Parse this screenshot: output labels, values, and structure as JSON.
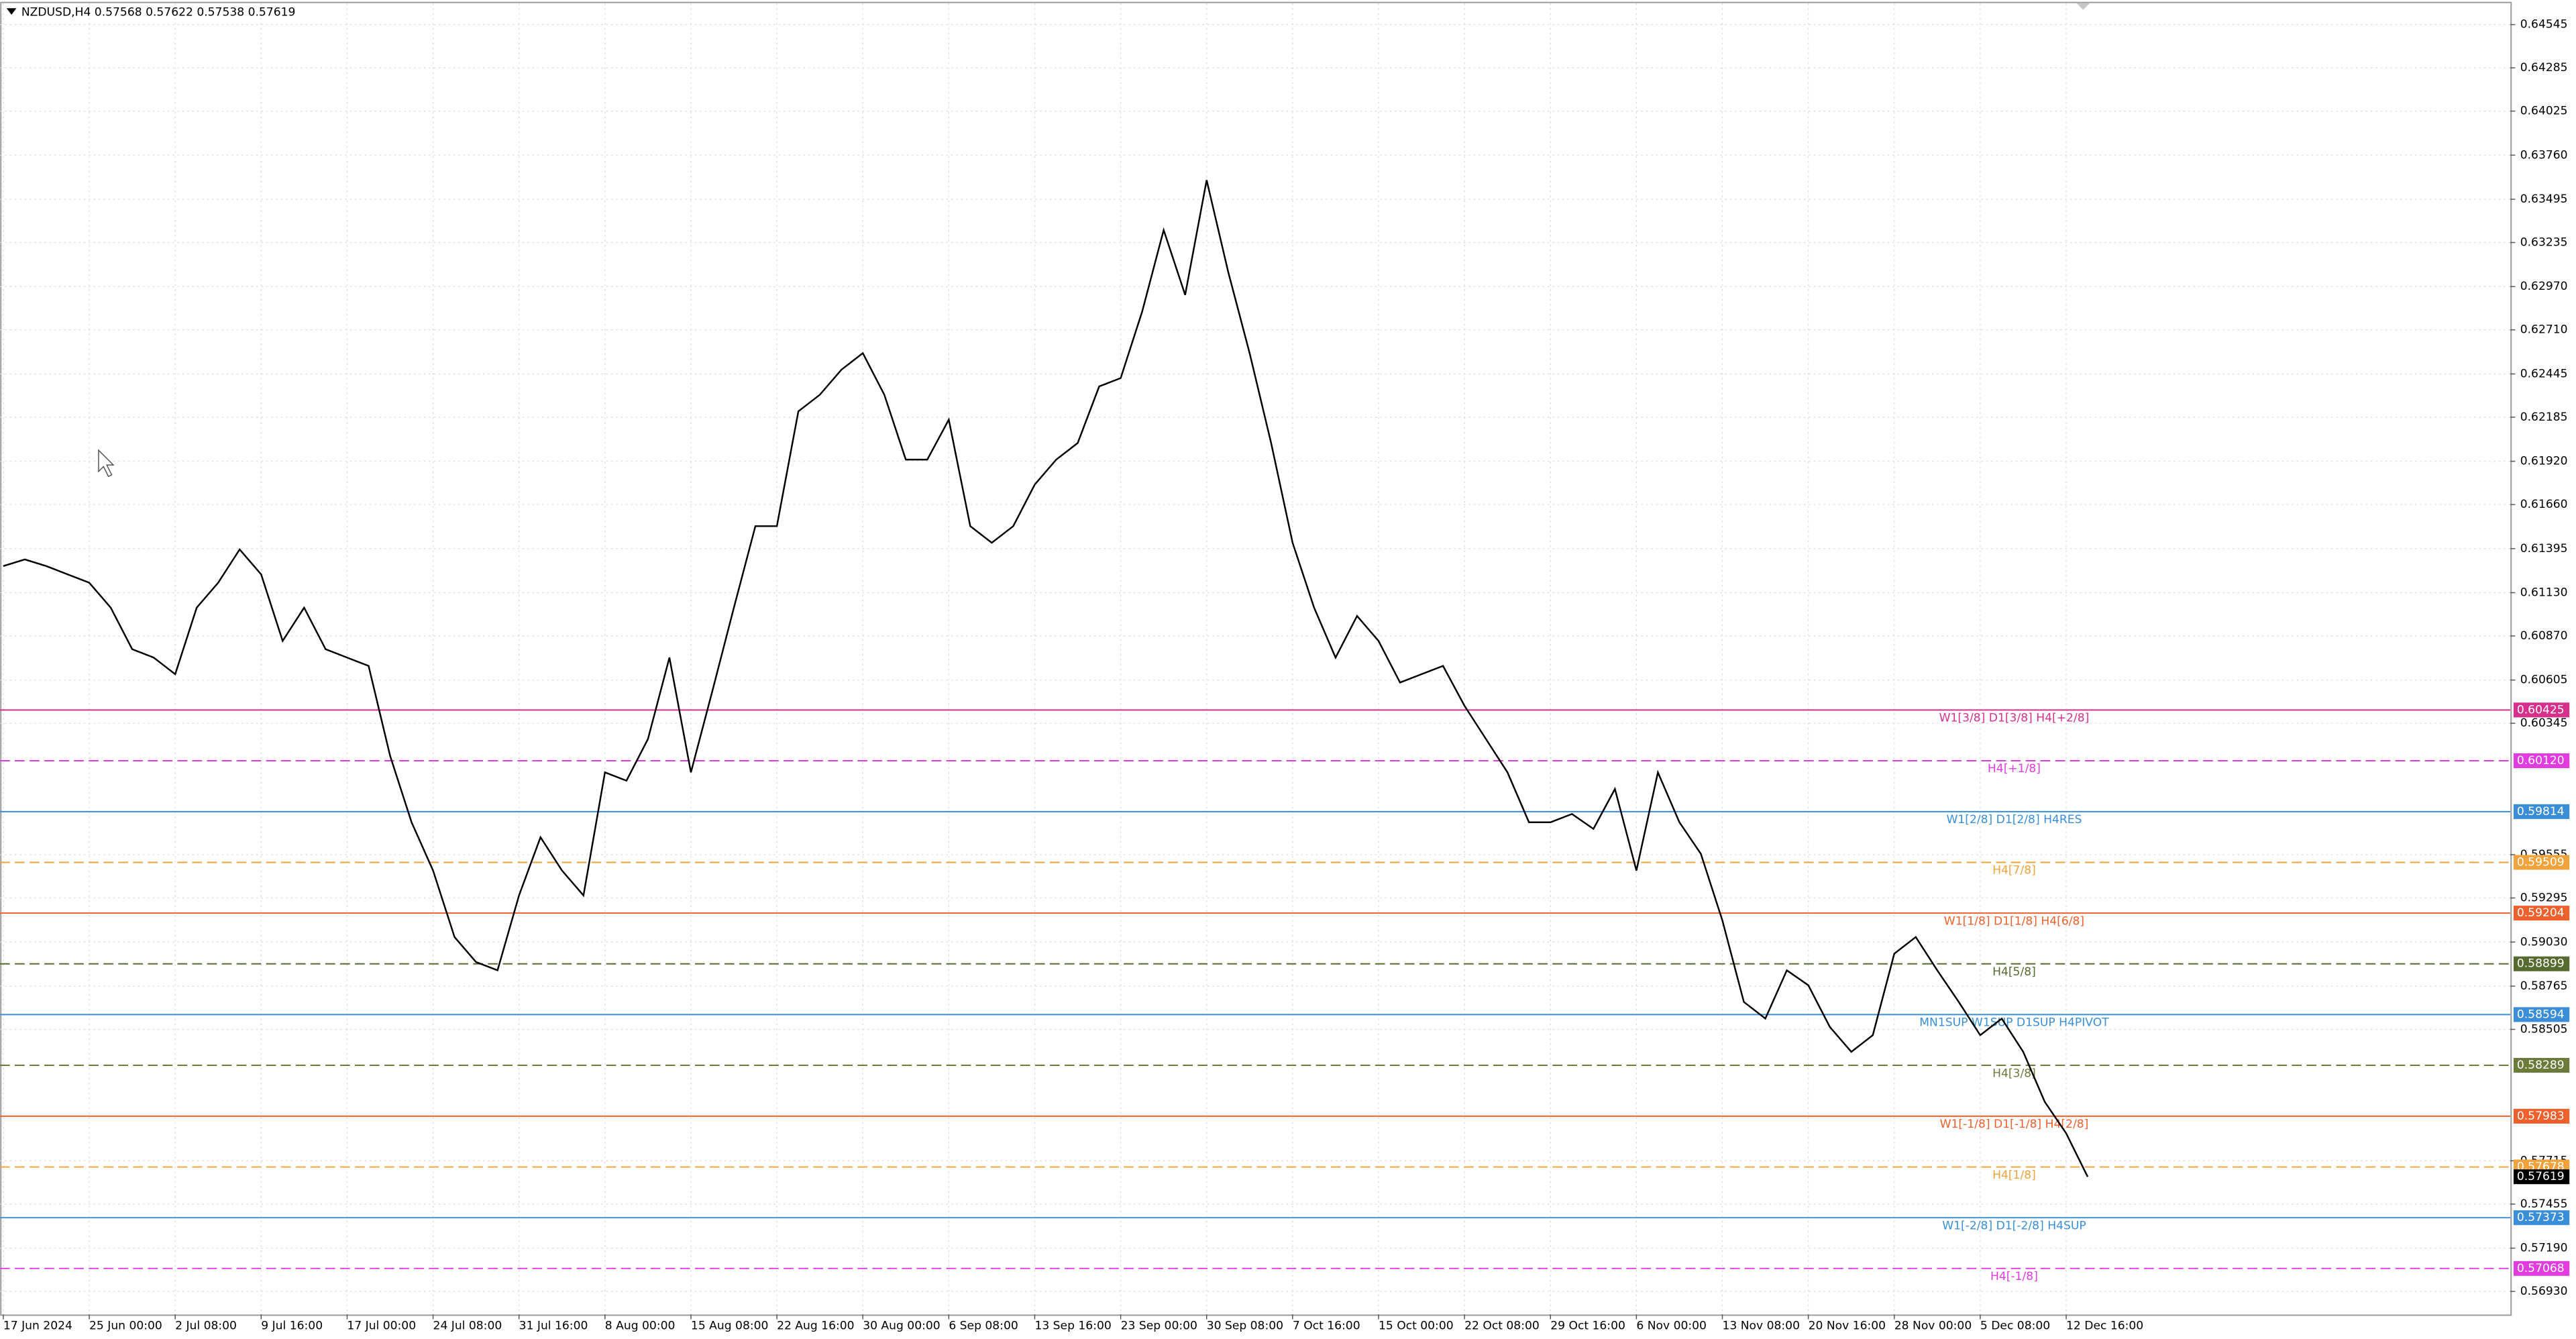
{
  "chart_data": {
    "type": "line",
    "title": "NZDUSD,H4  0.57568 0.57622 0.57538 0.57619",
    "color": "#000000",
    "grid": true,
    "categories": [
      "17 Jun 2024",
      null,
      null,
      null,
      "25 Jun 00:00",
      null,
      null,
      null,
      "2 Jul 08:00",
      null,
      null,
      null,
      "9 Jul 16:00",
      null,
      null,
      null,
      "17 Jul 00:00",
      null,
      null,
      null,
      "24 Jul 08:00",
      null,
      null,
      null,
      "31 Jul 16:00",
      null,
      null,
      null,
      "8 Aug 00:00",
      null,
      null,
      null,
      "15 Aug 08:00",
      null,
      null,
      null,
      "22 Aug 16:00",
      null,
      null,
      null,
      "30 Aug 00:00",
      null,
      null,
      null,
      "6 Sep 08:00",
      null,
      null,
      null,
      "13 Sep 16:00",
      null,
      null,
      null,
      "23 Sep 00:00",
      null,
      null,
      null,
      "30 Sep 08:00",
      null,
      null,
      null,
      "7 Oct 16:00",
      null,
      null,
      null,
      "15 Oct 00:00",
      null,
      null,
      null,
      "22 Oct 08:00",
      null,
      null,
      null,
      "29 Oct 16:00",
      null,
      null,
      null,
      "6 Nov 00:00",
      null,
      null,
      null,
      "13 Nov 08:00",
      null,
      null,
      null,
      "20 Nov 16:00",
      null,
      null,
      null,
      "28 Nov 00:00",
      null,
      null,
      null,
      "5 Dec 08:00",
      null,
      null,
      null,
      "12 Dec 16:00",
      null
    ],
    "values": [
      0.6129,
      0.6133,
      0.6129,
      0.6124,
      0.6119,
      0.6104,
      0.6079,
      0.6074,
      0.6064,
      0.6104,
      0.6119,
      0.6139,
      0.6124,
      0.6084,
      0.6104,
      0.6079,
      0.6074,
      0.6069,
      0.6015,
      0.5975,
      0.5946,
      0.5906,
      0.5891,
      0.5886,
      0.5931,
      0.5966,
      0.5946,
      0.5931,
      0.6005,
      0.6,
      0.6025,
      0.6074,
      0.6005,
      0.6054,
      0.6104,
      0.6153,
      0.6153,
      0.6222,
      0.6232,
      0.6247,
      0.6257,
      0.6232,
      0.6193,
      0.6193,
      0.6217,
      0.6153,
      0.6143,
      0.6153,
      0.6178,
      0.6193,
      0.6203,
      0.6237,
      0.6242,
      0.6282,
      0.6331,
      0.6292,
      0.6361,
      0.6306,
      0.6257,
      0.6203,
      0.6143,
      0.6104,
      0.6074,
      0.6099,
      0.6084,
      0.6059,
      0.6064,
      0.6069,
      0.6045,
      0.6025,
      0.6005,
      0.5975,
      0.5975,
      0.598,
      0.5971,
      0.5995,
      0.5946,
      0.6005,
      0.5975,
      0.5956,
      0.5916,
      0.5867,
      0.5857,
      0.5886,
      0.5877,
      0.5852,
      0.5837,
      0.5847,
      0.5896,
      0.5906,
      0.5886,
      0.5867,
      0.5847,
      0.5857,
      0.5837,
      0.5807,
      0.5788,
      0.57619
    ],
    "ylim": [
      0.56792,
      0.64673
    ],
    "yticks": [
      0.64545,
      0.64285,
      0.64025,
      {
        "value": 0.6376,
        "label": "0.63760"
      },
      0.63495,
      0.63235,
      {
        "value": 0.6297,
        "label": "0.62970"
      },
      {
        "value": 0.6271,
        "label": "0.62710"
      },
      0.62445,
      0.62185,
      {
        "value": 0.6192,
        "label": "0.61920"
      },
      {
        "value": 0.6166,
        "label": "0.61660"
      },
      0.61395,
      {
        "value": 0.6113,
        "label": "0.61130"
      },
      {
        "value": 0.6087,
        "label": "0.60870"
      },
      0.60605,
      0.60345,
      0.59555,
      0.59295,
      {
        "value": 0.5903,
        "label": "0.59030"
      },
      0.58765,
      0.58505,
      0.57715,
      0.57455,
      {
        "value": 0.5719,
        "label": "0.57190"
      },
      {
        "value": 0.5693,
        "label": "0.56930"
      }
    ],
    "levels": [
      {
        "label": "W1[3/8] D1[3/8] H4[+2/8]",
        "value": 0.60425,
        "color": "#d6308c",
        "dashed": false
      },
      {
        "label": "H4[+1/8]",
        "value": 0.6012,
        "value_label": "0.60120",
        "color": "#e03ce0",
        "dashed": true
      },
      {
        "label": "W1[2/8] D1[2/8] H4RES",
        "value": 0.59814,
        "color": "#3a8ed8",
        "dashed": false
      },
      {
        "label": "H4[7/8]",
        "value": 0.59509,
        "color": "#f0a23c",
        "dashed": true
      },
      {
        "label": "W1[1/8] D1[1/8] H4[6/8]",
        "value": 0.59204,
        "color": "#f0602c",
        "dashed": false
      },
      {
        "label": "H4[5/8]",
        "value": 0.58899,
        "color": "#556b2f",
        "dashed": true
      },
      {
        "label": "MN1SUP W1SUP D1SUP H4PIVOT",
        "value": 0.58594,
        "color": "#3a8ed8",
        "dashed": false
      },
      {
        "label": "H4[3/8]",
        "value": 0.58289,
        "color": "#6b7b3a",
        "dashed": true
      },
      {
        "label": "W1[-1/8] D1[-1/8] H4[2/8]",
        "value": 0.57983,
        "color": "#f0602c",
        "dashed": false
      },
      {
        "label": "H4[1/8]",
        "value": 0.57678,
        "color": "#f0a23c",
        "dashed": true
      },
      {
        "label": "W1[-2/8] D1[-2/8] H4SUP",
        "value": 0.57373,
        "color": "#3a8ed8",
        "dashed": false
      },
      {
        "label": "H4[-1/8]",
        "value": 0.57068,
        "color": "#e03ce0",
        "dashed": true
      }
    ]
  }
}
